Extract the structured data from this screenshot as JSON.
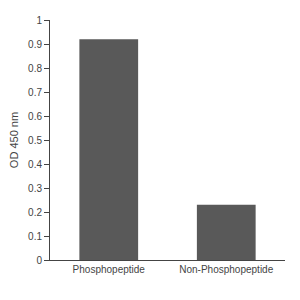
{
  "chart_data": {
    "type": "bar",
    "categories": [
      "Phosphopeptide",
      "Non-Phosphopeptide"
    ],
    "values": [
      0.92,
      0.23
    ],
    "color": "#595959",
    "ylabel": "OD 450 nm",
    "ylim": [
      0,
      1.0
    ],
    "yticks": [
      0,
      0.1,
      0.2,
      0.3,
      0.4,
      0.5,
      0.6,
      0.7,
      0.8,
      0.9,
      1
    ],
    "grid": false
  }
}
